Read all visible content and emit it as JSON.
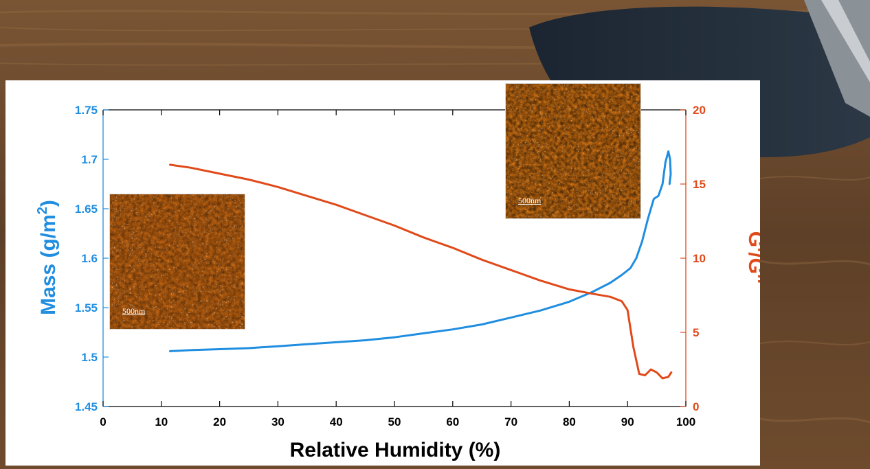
{
  "chart_data": {
    "type": "line",
    "xlabel": "Relative Humidity (%)",
    "ylabel_left": "Mass (g/m",
    "ylabel_left_superscript": "2",
    "ylabel_left_close": ")",
    "ylabel_right": "G'/G''",
    "xlim": [
      0,
      100
    ],
    "ylim_left": [
      1.45,
      1.75
    ],
    "ylim_right": [
      0,
      20
    ],
    "x_ticks": [
      "0",
      "10",
      "20",
      "30",
      "40",
      "50",
      "60",
      "70",
      "80",
      "90",
      "100"
    ],
    "y_left_ticks": [
      "1.45",
      "1.5",
      "1.55",
      "1.6",
      "1.65",
      "1.7",
      "1.75"
    ],
    "y_right_ticks": [
      "0",
      "5",
      "10",
      "15",
      "20"
    ],
    "grid": false,
    "series": [
      {
        "axis": "left",
        "color": "#1f8de0",
        "x": [
          11.5,
          15,
          20,
          25,
          30,
          35,
          40,
          45,
          50,
          55,
          60,
          65,
          70,
          75,
          80,
          84,
          87,
          89,
          90.5,
          91.5,
          92.5,
          93.5,
          94.5,
          95.3,
          96,
          96.5,
          97,
          97.3,
          97.4,
          97.2
        ],
        "y": [
          1.506,
          1.507,
          1.508,
          1.509,
          1.511,
          1.513,
          1.515,
          1.517,
          1.52,
          1.524,
          1.528,
          1.533,
          1.54,
          1.547,
          1.556,
          1.566,
          1.575,
          1.583,
          1.59,
          1.6,
          1.617,
          1.64,
          1.66,
          1.663,
          1.675,
          1.697,
          1.708,
          1.7,
          1.685,
          1.675
        ]
      },
      {
        "axis": "right",
        "color": "#e04a1a",
        "x": [
          11.5,
          15,
          20,
          25,
          30,
          35,
          40,
          45,
          50,
          55,
          60,
          65,
          70,
          75,
          80,
          84,
          87,
          89,
          90,
          91,
          92,
          93,
          94,
          95,
          96,
          97,
          97.5
        ],
        "y": [
          16.3,
          16.1,
          15.7,
          15.3,
          14.8,
          14.2,
          13.6,
          12.9,
          12.2,
          11.4,
          10.7,
          9.9,
          9.2,
          8.5,
          7.9,
          7.6,
          7.4,
          7.1,
          6.5,
          4.0,
          2.2,
          2.1,
          2.5,
          2.3,
          1.9,
          2.0,
          2.3
        ]
      }
    ]
  },
  "insets": [
    {
      "id": "afm-left",
      "scale_label": "500nm"
    },
    {
      "id": "afm-right",
      "scale_label": "500nm"
    }
  ]
}
